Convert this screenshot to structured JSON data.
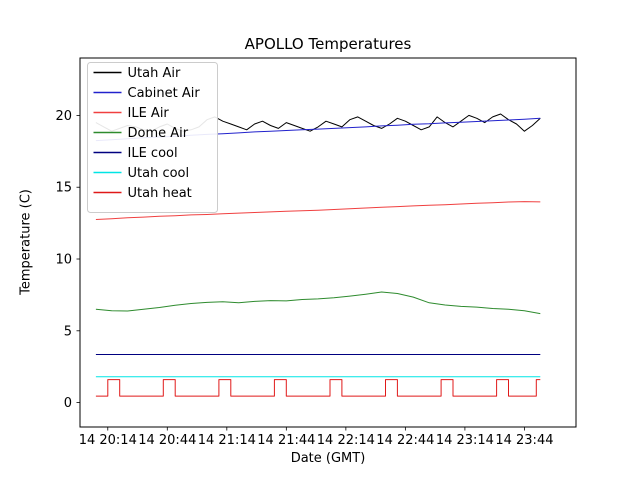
{
  "chart_data": {
    "type": "line",
    "title": "APOLLO Temperatures",
    "xlabel": "Date (GMT)",
    "ylabel": "Temperature (C)",
    "x_unit": "minutes after day-14 20:00 GMT",
    "xlim": [
      0,
      250
    ],
    "ylim": [
      -1.7,
      24
    ],
    "grid": false,
    "x_axis": {
      "label": "Date (GMT)",
      "tick_values": [
        14,
        44,
        74,
        104,
        134,
        164,
        194,
        224
      ],
      "tick_labels": [
        "14 20:14",
        "14 20:44",
        "14 21:14",
        "14 21:44",
        "14 22:14",
        "14 22:44",
        "14 23:14",
        "14 23:44"
      ]
    },
    "y_axis": {
      "label": "Temperature (C)",
      "tick_values": [
        0,
        5,
        10,
        15,
        20
      ],
      "tick_labels": [
        "0",
        "5",
        "10",
        "15",
        "20"
      ]
    },
    "legend": {
      "position": "upper left",
      "entries": [
        "Utah Air",
        "Cabinet Air",
        "ILE Air",
        "Dome Air",
        "ILE cool",
        "Utah cool",
        "Utah heat"
      ]
    },
    "series": [
      {
        "name": "Utah Air",
        "color": "#000000",
        "x": [
          8,
          12,
          16,
          20,
          24,
          28,
          32,
          36,
          40,
          44,
          48,
          52,
          56,
          60,
          64,
          68,
          72,
          76,
          80,
          84,
          88,
          92,
          96,
          100,
          104,
          108,
          112,
          116,
          120,
          124,
          128,
          132,
          136,
          140,
          144,
          148,
          152,
          156,
          160,
          164,
          168,
          172,
          176,
          180,
          184,
          188,
          192,
          196,
          200,
          204,
          208,
          212,
          216,
          220,
          224,
          228,
          232
        ],
        "y": [
          19.5,
          19.2,
          18.9,
          19.1,
          19.3,
          19.2,
          19.0,
          18.9,
          19.2,
          19.4,
          19.1,
          18.9,
          19.0,
          19.2,
          19.7,
          19.9,
          19.6,
          19.4,
          19.2,
          19.0,
          19.4,
          19.6,
          19.3,
          19.1,
          19.5,
          19.3,
          19.1,
          18.9,
          19.2,
          19.6,
          19.4,
          19.2,
          19.7,
          19.9,
          19.6,
          19.3,
          19.1,
          19.4,
          19.8,
          19.6,
          19.3,
          19.0,
          19.2,
          19.9,
          19.5,
          19.2,
          19.6,
          20.0,
          19.8,
          19.5,
          19.9,
          20.1,
          19.7,
          19.4,
          18.9,
          19.3,
          19.8
        ]
      },
      {
        "name": "Cabinet Air",
        "color": "#2222cc",
        "x": [
          8,
          16,
          24,
          32,
          40,
          48,
          56,
          64,
          72,
          80,
          88,
          96,
          104,
          112,
          120,
          128,
          136,
          144,
          152,
          160,
          168,
          176,
          184,
          192,
          200,
          208,
          216,
          224,
          232
        ],
        "y": [
          18.25,
          18.3,
          18.38,
          18.45,
          18.5,
          18.55,
          18.62,
          18.68,
          18.72,
          18.78,
          18.85,
          18.9,
          18.95,
          19.0,
          19.05,
          19.1,
          19.15,
          19.2,
          19.27,
          19.32,
          19.38,
          19.42,
          19.48,
          19.52,
          19.58,
          19.63,
          19.68,
          19.74,
          19.8
        ]
      },
      {
        "name": "ILE Air",
        "color": "#f04040",
        "x": [
          8,
          16,
          24,
          32,
          40,
          48,
          56,
          64,
          72,
          80,
          88,
          96,
          104,
          112,
          120,
          128,
          136,
          144,
          152,
          160,
          168,
          176,
          184,
          192,
          200,
          208,
          216,
          224,
          232
        ],
        "y": [
          12.75,
          12.8,
          12.87,
          12.92,
          12.98,
          13.02,
          13.07,
          13.1,
          13.15,
          13.2,
          13.24,
          13.28,
          13.32,
          13.36,
          13.4,
          13.45,
          13.5,
          13.55,
          13.6,
          13.65,
          13.7,
          13.74,
          13.78,
          13.83,
          13.88,
          13.92,
          13.97,
          14.0,
          13.98
        ]
      },
      {
        "name": "Dome Air",
        "color": "#2e8b2e",
        "x": [
          8,
          16,
          24,
          32,
          40,
          48,
          56,
          64,
          72,
          80,
          88,
          96,
          104,
          112,
          120,
          128,
          136,
          144,
          152,
          160,
          168,
          176,
          184,
          192,
          200,
          208,
          216,
          224,
          232
        ],
        "y": [
          6.5,
          6.4,
          6.38,
          6.5,
          6.62,
          6.78,
          6.9,
          6.98,
          7.02,
          6.96,
          7.05,
          7.1,
          7.08,
          7.18,
          7.22,
          7.3,
          7.42,
          7.55,
          7.7,
          7.6,
          7.35,
          6.95,
          6.8,
          6.7,
          6.65,
          6.55,
          6.5,
          6.4,
          6.2
        ]
      },
      {
        "name": "ILE cool",
        "color": "#000080",
        "x": [
          8,
          232
        ],
        "y": [
          3.35,
          3.35
        ]
      },
      {
        "name": "Utah cool",
        "color": "#00e5e5",
        "x": [
          8,
          232
        ],
        "y": [
          1.8,
          1.8
        ]
      },
      {
        "name": "Utah heat",
        "color": "#e01919",
        "x": [
          8,
          14,
          14,
          20,
          20,
          42,
          42,
          48,
          48,
          70,
          70,
          76,
          76,
          98,
          98,
          104,
          104,
          126,
          126,
          132,
          132,
          154,
          154,
          160,
          160,
          182,
          182,
          188,
          188,
          210,
          210,
          216,
          216,
          230,
          230,
          232
        ],
        "y": [
          0.45,
          0.45,
          1.6,
          1.6,
          0.45,
          0.45,
          1.6,
          1.6,
          0.45,
          0.45,
          1.6,
          1.6,
          0.45,
          0.45,
          1.6,
          1.6,
          0.45,
          0.45,
          1.6,
          1.6,
          0.45,
          0.45,
          1.6,
          1.6,
          0.45,
          0.45,
          1.6,
          1.6,
          0.45,
          0.45,
          1.6,
          1.6,
          0.45,
          0.45,
          1.6,
          1.6
        ]
      }
    ]
  }
}
